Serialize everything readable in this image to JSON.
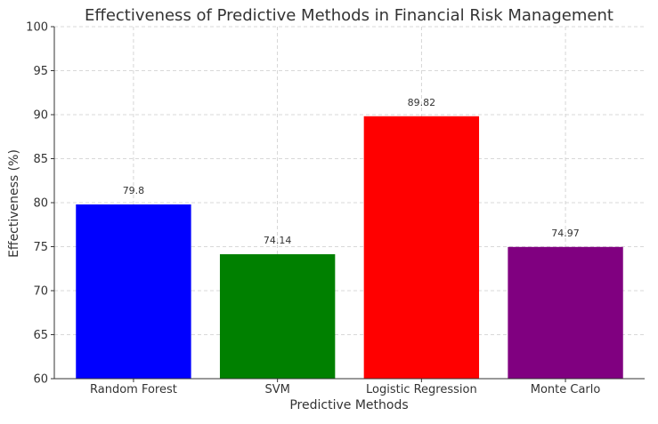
{
  "chart_data": {
    "type": "bar",
    "title": "Effectiveness of Predictive Methods in Financial Risk Management",
    "xlabel": "Predictive Methods",
    "ylabel": "Effectiveness (%)",
    "categories": [
      "Random Forest",
      "SVM",
      "Logistic Regression",
      "Monte Carlo"
    ],
    "values": [
      79.8,
      74.14,
      89.82,
      74.97
    ],
    "data_labels": [
      "79.8",
      "74.14",
      "89.82",
      "74.97"
    ],
    "colors": [
      "#0000ff",
      "#008000",
      "#ff0000",
      "#800080"
    ],
    "ylim": [
      60,
      100
    ],
    "yticks": [
      60,
      65,
      70,
      75,
      80,
      85,
      90,
      95,
      100
    ],
    "grid": true,
    "legend": false
  }
}
